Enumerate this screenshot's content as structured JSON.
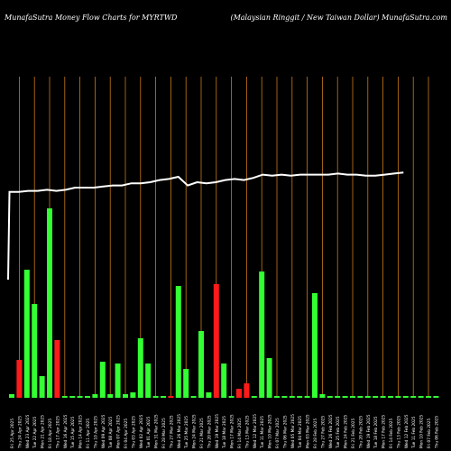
{
  "chart_data": {
    "type": "bar",
    "title": "MunafaSutra  Money  Flow  Charts for MYRTWD",
    "subtitle": "(Malaysian  Ringgit / New  Taiwan  Dollar) MunafaSutra.com",
    "categories": [
      "Fri 25 Apr 2025",
      "Thu 24 Apr 2025",
      "Wed 23 Apr 2025",
      "Tue 22 Apr 2025",
      "Mon 21 Apr 2025",
      "Fri 18 Apr 2025",
      "Thu 17 Apr 2025",
      "Wed 16 Apr 2025",
      "Tue 15 Apr 2025",
      "Mon 14 Apr 2025",
      "Fri 11 Apr 2025",
      "Thu 10 Apr 2025",
      "Wed 09 Apr 2025",
      "Tue 08 Apr 2025",
      "Mon 07 Apr 2025",
      "Fri 04 Apr 2025",
      "Thu 03 Apr 2025",
      "Wed 02 Apr 2025",
      "Tue 01 Apr 2025",
      "Mon 31 Mar 2025",
      "Fri 28 Mar 2025",
      "Thu 27 Mar 2025",
      "Wed 26 Mar 2025",
      "Tue 25 Mar 2025",
      "Mon 24 Mar 2025",
      "Fri 21 Mar 2025",
      "Thu 20 Mar 2025",
      "Wed 19 Mar 2025",
      "Tue 18 Mar 2025",
      "Mon 17 Mar 2025",
      "Fri 14 Mar 2025",
      "Thu 13 Mar 2025",
      "Wed 12 Mar 2025",
      "Tue 11 Mar 2025",
      "Mon 10 Mar 2025",
      "Fri 07 Mar 2025",
      "Thu 06 Mar 2025",
      "Wed 05 Mar 2025",
      "Tue 04 Mar 2025",
      "Mon 03 Mar 2025",
      "Fri 28 Feb 2025",
      "Thu 27 Feb 2025",
      "Wed 26 Feb 2025",
      "Tue 25 Feb 2025",
      "Mon 24 Feb 2025",
      "Fri 21 Feb 2025",
      "Thu 20 Feb 2025",
      "Wed 19 Feb 2025",
      "Tue 18 Feb 2025",
      "Mon 17 Feb 2025",
      "Fri 14 Feb 2025",
      "Thu 13 Feb 2025",
      "Wed 12 Feb 2025",
      "Tue 11 Feb 2025",
      "Mon 10 Feb 2025",
      "Fri 07 Feb 2025",
      "Thu 06 Feb 2025"
    ],
    "series": [
      {
        "values": [
          2,
          21,
          71,
          52,
          12,
          105,
          32,
          1,
          1,
          1,
          1,
          2,
          20,
          2,
          19,
          2,
          3,
          33,
          19,
          1,
          1,
          1,
          62,
          16,
          1,
          37,
          3,
          63,
          19,
          1,
          5,
          8,
          1,
          70,
          22,
          1,
          1,
          1,
          1,
          1,
          58,
          2,
          1,
          1,
          1,
          1,
          1,
          1,
          1,
          1,
          1,
          1,
          1,
          1,
          1,
          1,
          1
        ],
        "colors": [
          "green",
          "red",
          "green",
          "green",
          "green",
          "green",
          "red",
          "green",
          "green",
          "green",
          "green",
          "green",
          "green",
          "green",
          "green",
          "green",
          "green",
          "green",
          "green",
          "green",
          "green",
          "red",
          "green",
          "green",
          "green",
          "green",
          "green",
          "red",
          "green",
          "green",
          "red",
          "red",
          "green",
          "green",
          "green",
          "green",
          "green",
          "green",
          "green",
          "green",
          "green",
          "green",
          "green",
          "green",
          "green",
          "green",
          "green",
          "green",
          "green",
          "green",
          "green",
          "green",
          "green",
          "green",
          "green",
          "green",
          "green"
        ]
      }
    ],
    "price_line": [
      -25,
      56,
      56,
      57,
      57,
      58,
      57,
      58,
      60,
      60,
      60,
      61,
      62,
      62,
      64,
      64,
      65,
      67,
      68,
      70,
      62,
      65,
      64,
      65,
      67,
      68,
      67,
      69,
      72,
      71,
      72,
      71,
      72,
      72,
      72,
      72,
      73,
      72,
      72,
      71,
      71,
      72,
      73,
      74
    ],
    "colors": {
      "up": "#33ff33",
      "down": "#ff1a1a",
      "line": "#ffffff",
      "grid": "#c87a19",
      "background": "#000000"
    }
  }
}
